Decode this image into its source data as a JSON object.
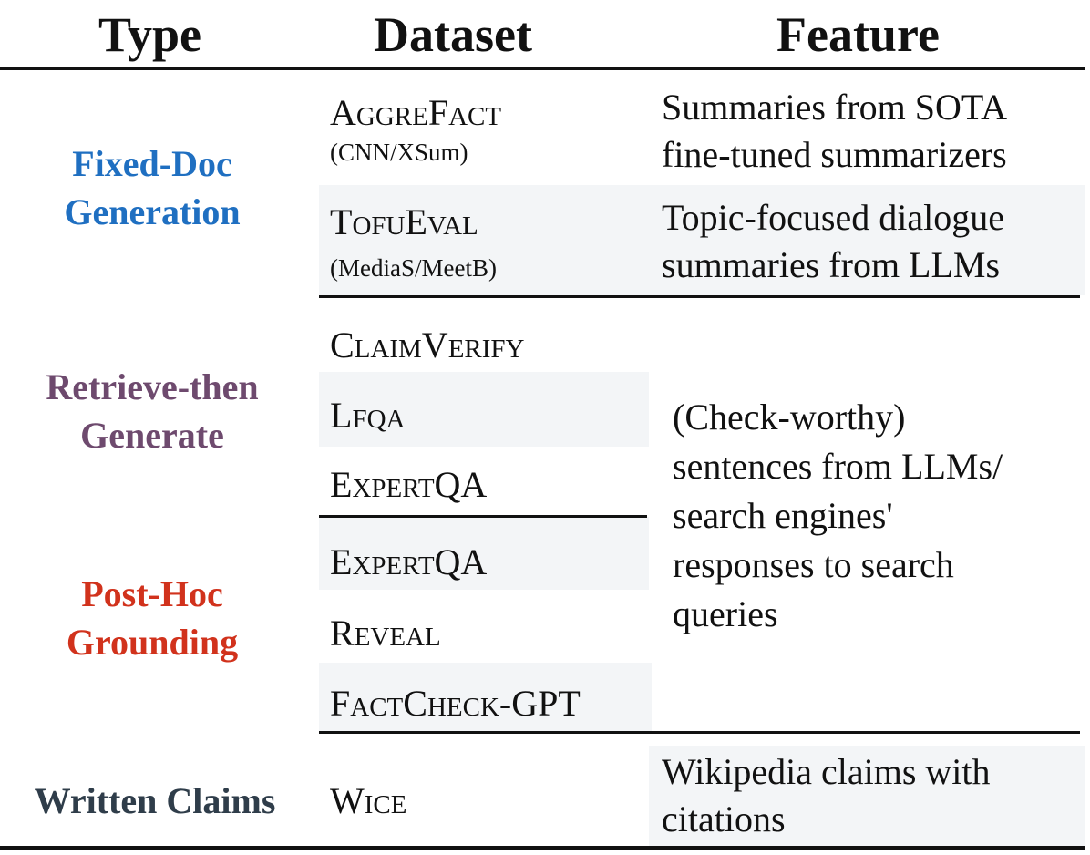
{
  "headers": {
    "type": "Type",
    "dataset": "Dataset",
    "feature": "Feature"
  },
  "groups": [
    {
      "type_line1": "Fixed-Doc",
      "type_line2": "Generation",
      "color": "#1f6fc1"
    },
    {
      "type_line1": "Retrieve-then",
      "type_line2": "Generate",
      "color": "#6e4a6e"
    },
    {
      "type_line1": "Post-Hoc",
      "type_line2": "Grounding",
      "color": "#d1321c"
    },
    {
      "type_line1": "Written Claims",
      "color": "#2f3d4a"
    }
  ],
  "datasets": {
    "aggrefact": {
      "cap1": "A",
      "small1": "GGRE",
      "cap2": "F",
      "small2": "ACT",
      "sub": "(CNN/XSum)"
    },
    "tofueval": {
      "cap1": "T",
      "small1": "OFU",
      "cap2": "E",
      "small2": "VAL",
      "sub": "(MediaS/MeetB)"
    },
    "claimverify": {
      "cap1": "C",
      "small1": "LAIM",
      "cap2": "V",
      "small2": "ERIFY"
    },
    "lfqa": {
      "cap1": "L",
      "small1": "FQA"
    },
    "expertqa_1": {
      "cap1": "E",
      "small1": "XPERT",
      "rest": "QA"
    },
    "expertqa_2": {
      "cap1": "E",
      "small1": "XPERT",
      "rest": "QA"
    },
    "reveal": {
      "cap1": "R",
      "small1": "EVEAL"
    },
    "factcheck": {
      "cap1": "F",
      "small1": "ACT",
      "cap2": "C",
      "small2": "HECK",
      "rest": "-GPT"
    },
    "wice": {
      "cap1": "W",
      "small1": "ICE"
    }
  },
  "features": {
    "aggrefact": [
      "Summaries from SOTA",
      "fine-tuned summarizers"
    ],
    "tofueval": [
      "Topic-focused dialogue",
      "summaries from LLMs"
    ],
    "shared": [
      "(Check-worthy)",
      "sentences from LLMs/",
      "search engines'",
      "responses to search",
      "queries"
    ],
    "wice": [
      "Wikipedia claims with",
      "citations"
    ]
  }
}
